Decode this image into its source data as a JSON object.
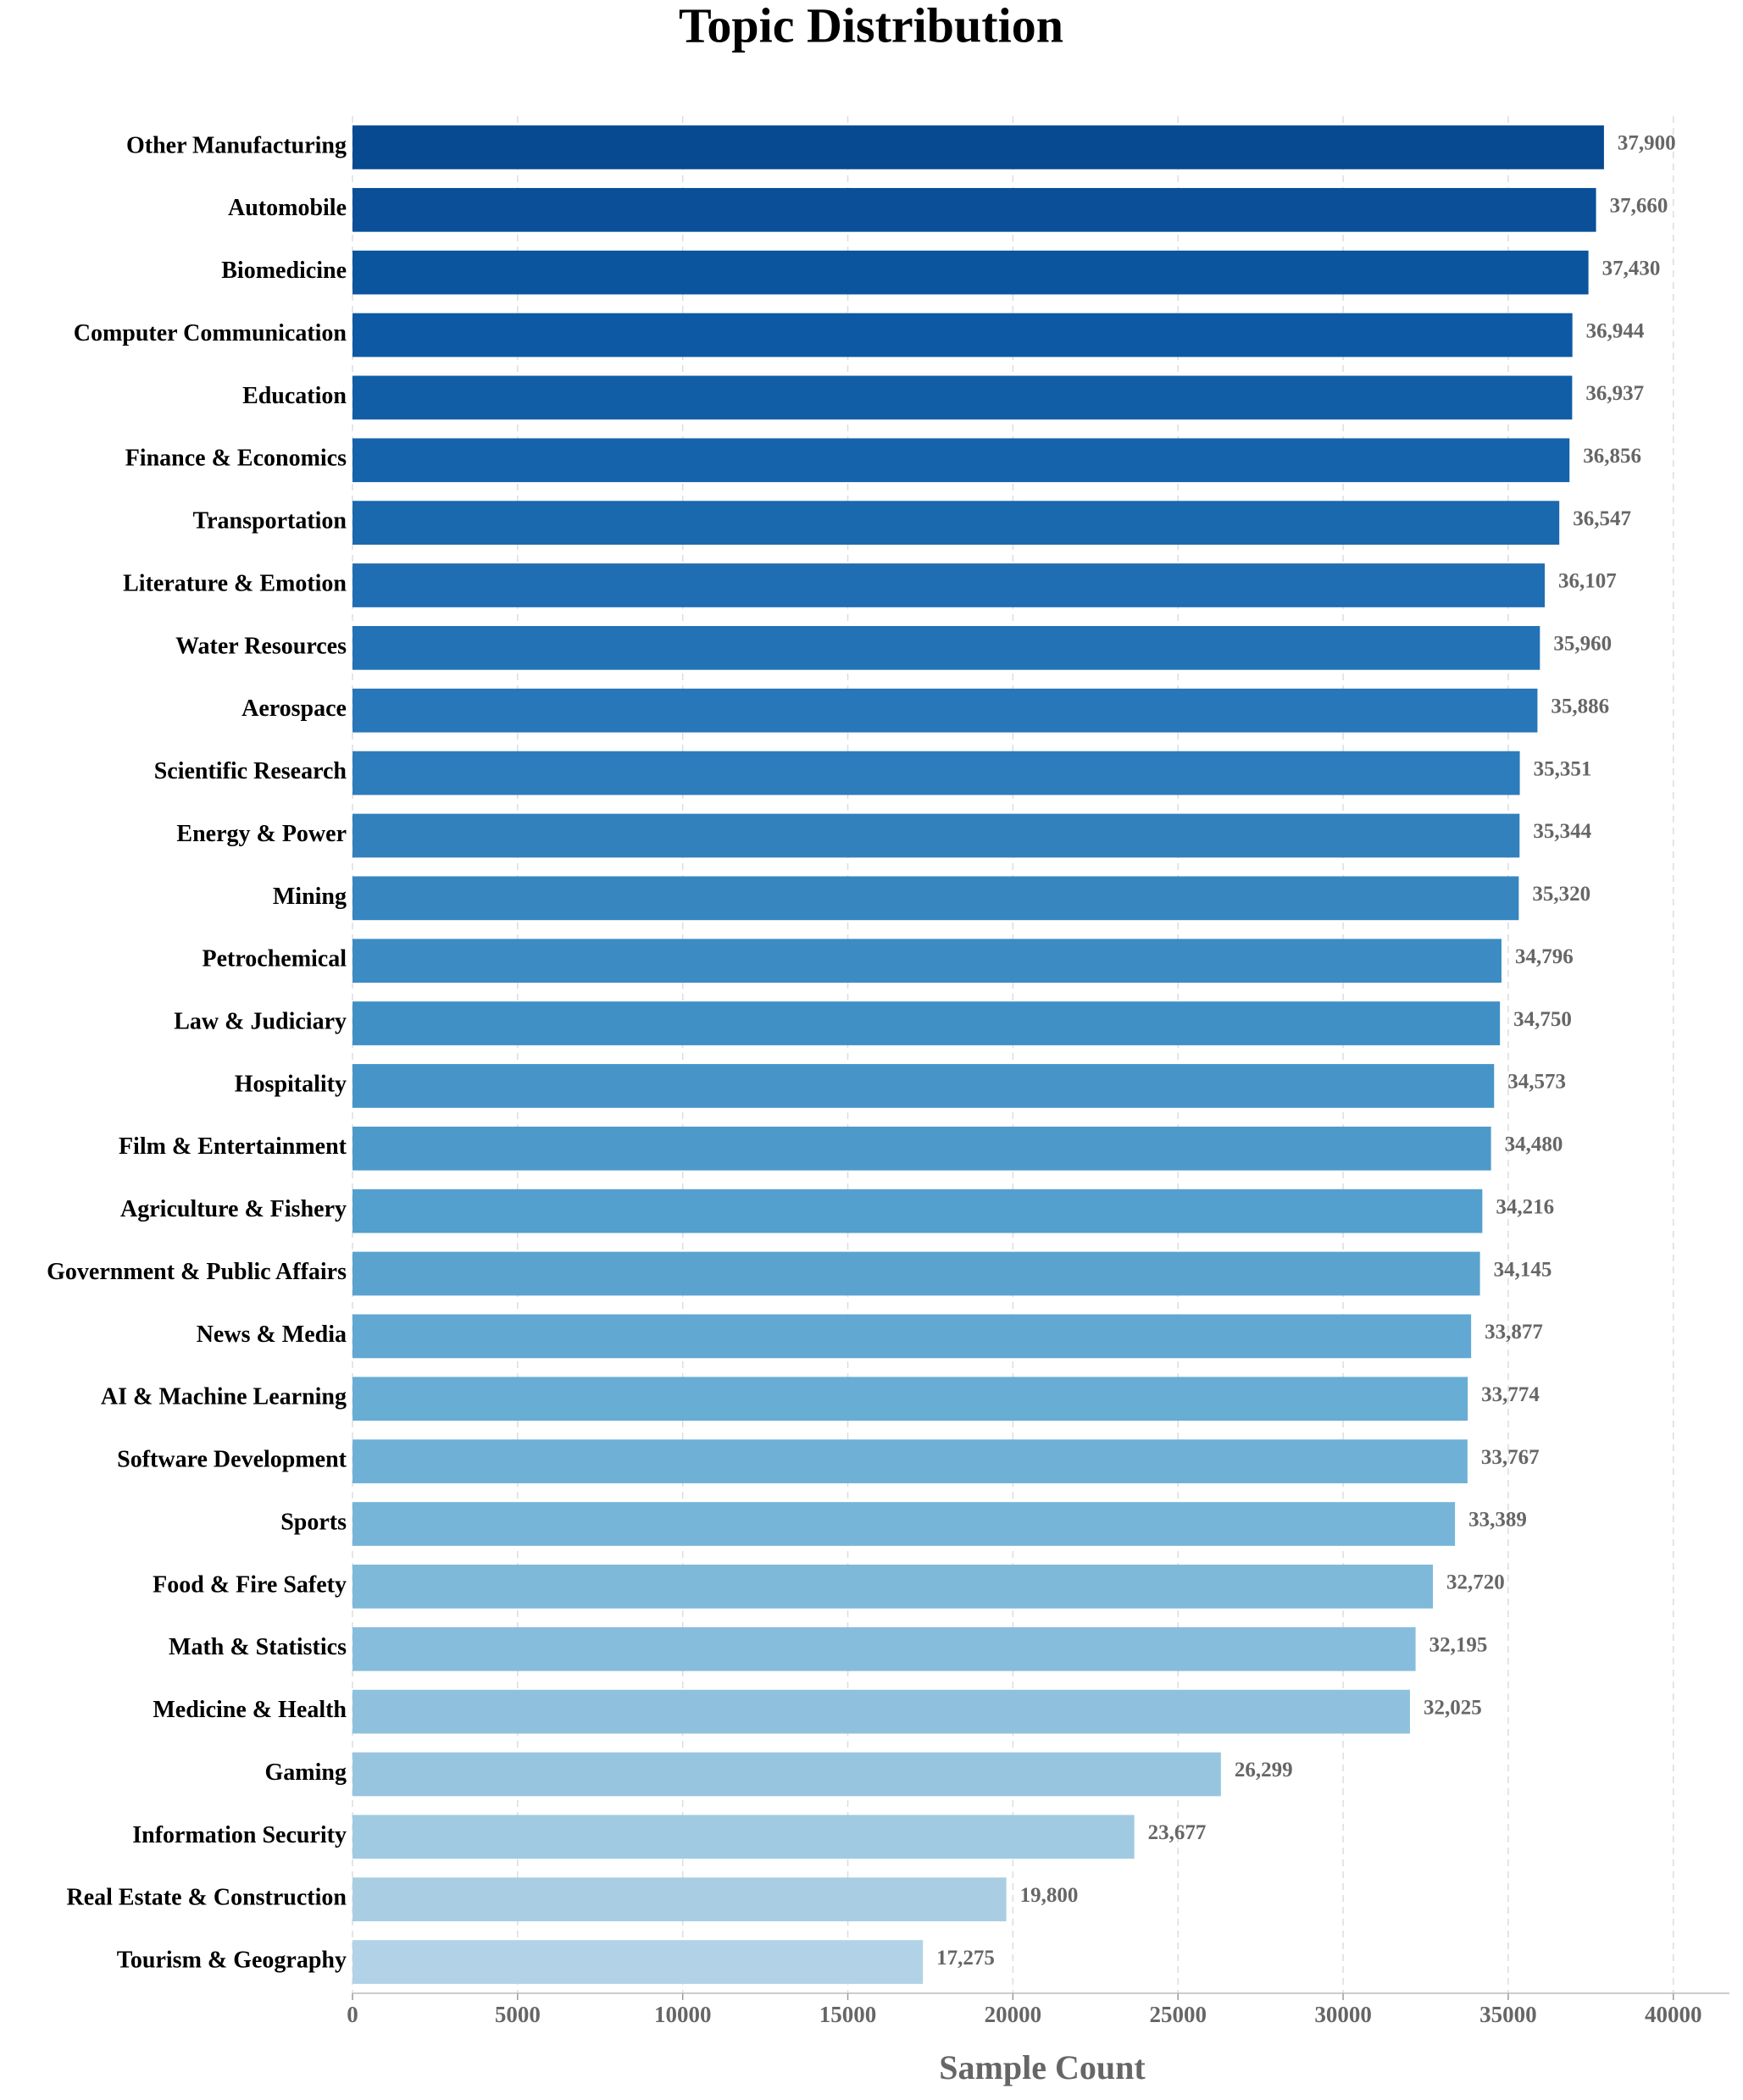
{
  "chart_data": {
    "type": "barh",
    "title": "Topic Distribution",
    "x_label": "Sample Count",
    "categories": [
      "Other Manufacturing",
      "Automobile",
      "Biomedicine",
      "Computer Communication",
      "Education",
      "Finance & Economics",
      "Transportation",
      "Literature & Emotion",
      "Water Resources",
      "Aerospace",
      "Scientific Research",
      "Energy & Power",
      "Mining",
      "Petrochemical",
      "Law & Judiciary",
      "Hospitality",
      "Film & Entertainment",
      "Agriculture & Fishery",
      "Government & Public Affairs",
      "News & Media",
      "AI & Machine Learning",
      "Software Development",
      "Sports",
      "Food & Fire Safety",
      "Math & Statistics",
      "Medicine & Health",
      "Gaming",
      "Information Security",
      "Real Estate & Construction",
      "Tourism & Geography"
    ],
    "values": [
      37900,
      37660,
      37430,
      36944,
      36937,
      36856,
      36547,
      36107,
      35960,
      35886,
      35351,
      35344,
      35320,
      34796,
      34750,
      34573,
      34480,
      34216,
      34145,
      33877,
      33774,
      33767,
      33389,
      32720,
      32195,
      32025,
      26299,
      23677,
      19800,
      17275
    ],
    "value_labels": [
      "37,900",
      "37,660",
      "37,430",
      "36,944",
      "36,937",
      "36,856",
      "36,547",
      "36,107",
      "35,960",
      "35,886",
      "35,351",
      "35,344",
      "35,320",
      "34,796",
      "34,750",
      "34,573",
      "34,480",
      "34,216",
      "34,145",
      "33,877",
      "33,774",
      "33,767",
      "33,389",
      "32,720",
      "32,195",
      "32,025",
      "26,299",
      "23,677",
      "19,800",
      "17,275"
    ],
    "colors": [
      "#084a91",
      "#0a4f98",
      "#0b549e",
      "#0e59a3",
      "#115ea7",
      "#1563aa",
      "#1a68ae",
      "#1f6db2",
      "#2372b5",
      "#2877b8",
      "#2d7cbb",
      "#3281bd",
      "#3786c0",
      "#3c8bc3",
      "#4190c5",
      "#4795c8",
      "#4d9aca",
      "#539fcd",
      "#5aa3cf",
      "#61a8d2",
      "#68add4",
      "#6fb1d6",
      "#77b5d8",
      "#7fb9da",
      "#87bddc",
      "#8fc1de",
      "#97c5df",
      "#a0cae1",
      "#a9cee4",
      "#b2d3e7"
    ],
    "xlim": [
      0,
      41700
    ],
    "xticks": [
      0,
      5000,
      10000,
      15000,
      20000,
      25000,
      30000,
      35000,
      40000
    ],
    "grid": true
  }
}
